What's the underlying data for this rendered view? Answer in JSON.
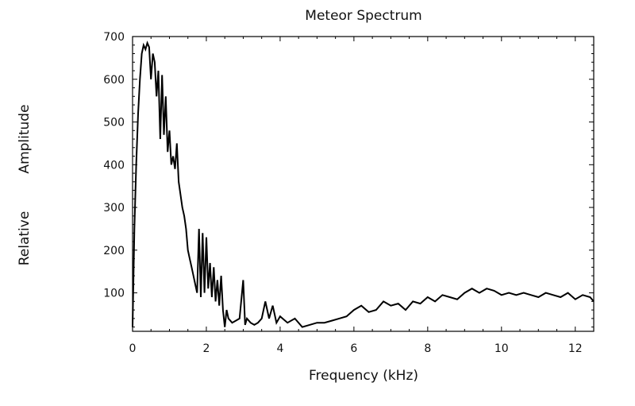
{
  "chart_data": {
    "type": "line",
    "title": "Meteor    Spectrum",
    "xlabel": "Frequency    (kHz)",
    "ylabel_line1": "Relative",
    "ylabel_line2": "Amplitude",
    "xlim": [
      0,
      12.5
    ],
    "ylim": [
      10,
      700
    ],
    "xticks": [
      0,
      2,
      4,
      6,
      8,
      10,
      12
    ],
    "yticks": [
      100,
      200,
      300,
      400,
      500,
      600,
      700
    ],
    "xtick_labels": [
      "0",
      "2",
      "4",
      "6",
      "8",
      "10",
      "12"
    ],
    "ytick_labels": [
      "100",
      "200",
      "300",
      "400",
      "500",
      "600",
      "700"
    ],
    "grid": false,
    "line_color": "#000000",
    "series": [
      {
        "x": [
          0,
          0.05,
          0.1,
          0.15,
          0.2,
          0.25,
          0.3,
          0.35,
          0.4,
          0.45,
          0.5,
          0.55,
          0.6,
          0.65,
          0.7,
          0.75,
          0.8,
          0.85,
          0.9,
          0.95,
          1.0,
          1.05,
          1.1,
          1.15,
          1.2,
          1.25,
          1.3,
          1.35,
          1.4,
          1.45,
          1.5,
          1.55,
          1.6,
          1.65,
          1.7,
          1.75,
          1.8,
          1.85,
          1.9,
          1.95,
          2.0,
          2.05,
          2.1,
          2.15,
          2.2,
          2.25,
          2.3,
          2.35,
          2.4,
          2.45,
          2.5,
          2.55,
          2.6,
          2.7,
          2.8,
          2.9,
          3.0,
          3.05,
          3.1,
          3.2,
          3.3,
          3.4,
          3.5,
          3.6,
          3.7,
          3.8,
          3.9,
          4.0,
          4.2,
          4.4,
          4.6,
          4.8,
          5.0,
          5.2,
          5.4,
          5.6,
          5.8,
          6.0,
          6.2,
          6.4,
          6.6,
          6.8,
          7.0,
          7.2,
          7.4,
          7.6,
          7.8,
          8.0,
          8.2,
          8.4,
          8.6,
          8.8,
          9.0,
          9.2,
          9.4,
          9.6,
          9.8,
          10.0,
          10.2,
          10.4,
          10.6,
          10.8,
          11.0,
          11.2,
          11.4,
          11.6,
          11.8,
          12.0,
          12.2,
          12.4,
          12.5
        ],
        "y": [
          20,
          250,
          400,
          520,
          600,
          660,
          680,
          670,
          685,
          675,
          600,
          660,
          640,
          560,
          620,
          460,
          610,
          470,
          560,
          430,
          480,
          400,
          420,
          390,
          450,
          360,
          330,
          300,
          280,
          250,
          200,
          180,
          160,
          140,
          120,
          100,
          250,
          90,
          240,
          100,
          230,
          110,
          170,
          90,
          160,
          80,
          130,
          70,
          140,
          60,
          20,
          60,
          40,
          30,
          35,
          40,
          130,
          25,
          40,
          30,
          25,
          30,
          40,
          80,
          40,
          70,
          30,
          45,
          30,
          40,
          20,
          25,
          30,
          30,
          35,
          40,
          45,
          60,
          70,
          55,
          60,
          80,
          70,
          75,
          60,
          80,
          75,
          90,
          80,
          95,
          90,
          85,
          100,
          110,
          100,
          110,
          105,
          95,
          100,
          95,
          100,
          95,
          90,
          100,
          95,
          90,
          100,
          85,
          95,
          90,
          80
        ]
      }
    ]
  }
}
